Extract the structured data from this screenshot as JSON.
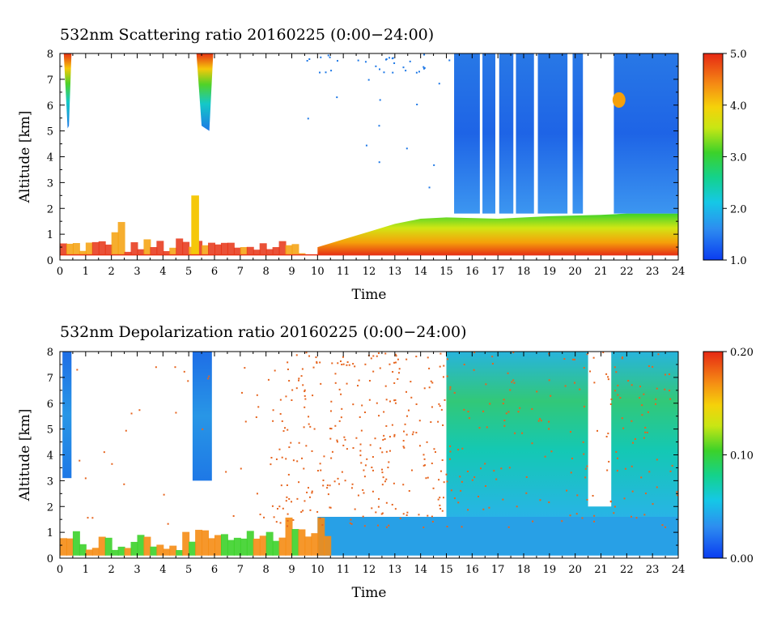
{
  "chart_data": [
    {
      "type": "heatmap",
      "title": "532nm Scattering ratio  20160225 (0:00−24:00)",
      "xlabel": "Time",
      "ylabel": "Altitude [km]",
      "xlim": [
        0,
        24
      ],
      "ylim": [
        0,
        8
      ],
      "xticks": [
        "0",
        "1",
        "2",
        "3",
        "4",
        "5",
        "6",
        "7",
        "8",
        "9",
        "10",
        "11",
        "12",
        "13",
        "14",
        "15",
        "16",
        "17",
        "18",
        "19",
        "20",
        "21",
        "22",
        "23",
        "24"
      ],
      "yticks": [
        "0",
        "1",
        "2",
        "3",
        "4",
        "5",
        "6",
        "7",
        "8"
      ],
      "colorbar": {
        "min": 1.0,
        "max": 5.0,
        "ticks": [
          "1.0",
          "2.0",
          "3.0",
          "4.0",
          "5.0"
        ],
        "colormap": "blue-cyan-green-yellow-orange-red"
      },
      "features": [
        {
          "x": [
            0.2,
            0.4
          ],
          "y": [
            5.2,
            8.0
          ],
          "value_range": [
            2.0,
            5.0
          ]
        },
        {
          "x": [
            5.3,
            5.9
          ],
          "y": [
            5.0,
            8.0
          ],
          "value_range": [
            2.0,
            5.0
          ]
        },
        {
          "x": [
            10.0,
            24.0
          ],
          "y": [
            0.2,
            1.8
          ],
          "value_range": [
            3.0,
            5.0
          ]
        },
        {
          "x": [
            15.3,
            24.0
          ],
          "y": [
            1.8,
            8.0
          ],
          "value_range": [
            1.0,
            2.0
          ]
        },
        {
          "x": [
            21.5,
            21.9
          ],
          "y": [
            5.9,
            6.6
          ],
          "value_range": [
            3.5,
            5.0
          ]
        }
      ]
    },
    {
      "type": "heatmap",
      "title": "532nm Depolarization ratio  20160225 (0:00−24:00)",
      "xlabel": "Time",
      "ylabel": "Altitude [km]",
      "xlim": [
        0,
        24
      ],
      "ylim": [
        0,
        8
      ],
      "xticks": [
        "0",
        "1",
        "2",
        "3",
        "4",
        "5",
        "6",
        "7",
        "8",
        "9",
        "10",
        "11",
        "12",
        "13",
        "14",
        "15",
        "16",
        "17",
        "18",
        "19",
        "20",
        "21",
        "22",
        "23",
        "24"
      ],
      "yticks": [
        "0",
        "1",
        "2",
        "3",
        "4",
        "5",
        "6",
        "7",
        "8"
      ],
      "colorbar": {
        "min": 0.0,
        "max": 0.2,
        "ticks": [
          "0.00",
          "0.10",
          "0.20"
        ],
        "colormap": "blue-cyan-green-yellow-orange-red"
      },
      "features": [
        {
          "x": [
            0.1,
            0.5
          ],
          "y": [
            3.0,
            8.0
          ],
          "value_range": [
            0.0,
            0.04
          ]
        },
        {
          "x": [
            5.1,
            5.9
          ],
          "y": [
            3.0,
            8.0
          ],
          "value_range": [
            0.0,
            0.05
          ]
        },
        {
          "x": [
            10.0,
            24.0
          ],
          "y": [
            0.1,
            1.5
          ],
          "value_range": [
            0.02,
            0.06
          ]
        },
        {
          "x": [
            15.0,
            24.0
          ],
          "y": [
            1.5,
            8.0
          ],
          "value_range": [
            0.04,
            0.12
          ]
        },
        {
          "x": [
            8.5,
            15.0
          ],
          "y": [
            1.5,
            8.0
          ],
          "value_range": [
            0.15,
            0.2
          ]
        }
      ]
    }
  ]
}
